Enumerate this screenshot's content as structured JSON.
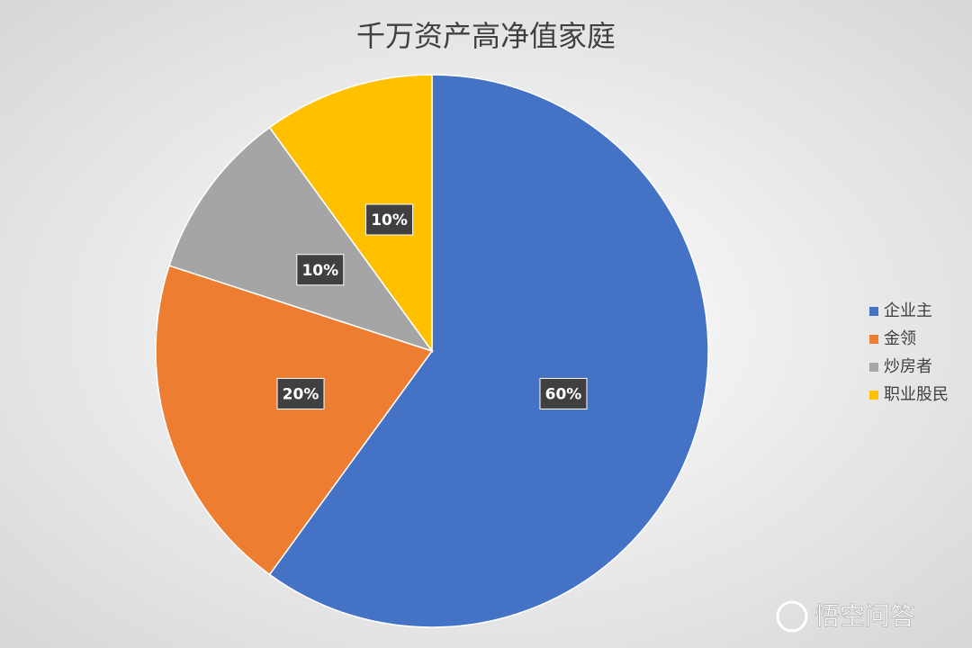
{
  "chart_data": {
    "type": "pie",
    "title": "千万资产高净值家庭",
    "categories": [
      "企业主",
      "金领",
      "炒房者",
      "职业股民"
    ],
    "values": [
      60,
      20,
      10,
      10
    ],
    "value_labels": [
      "60%",
      "20%",
      "10%",
      "10%"
    ],
    "colors": [
      "#4472c4",
      "#ed7d31",
      "#a5a5a5",
      "#ffc000"
    ],
    "legend": "right"
  },
  "watermark": "悟空问答"
}
